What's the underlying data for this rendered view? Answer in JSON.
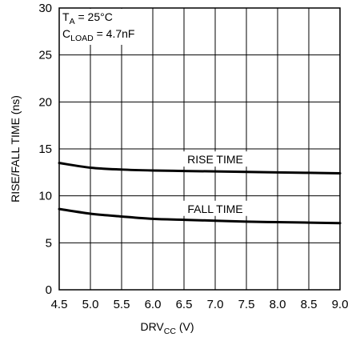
{
  "chart_data": {
    "type": "line",
    "xlabel": {
      "main": "DRV",
      "sub": "CC",
      "unit": " (V)"
    },
    "ylabel": "RISE/FALL TIME (ns)",
    "xlim": [
      4.5,
      9.0
    ],
    "ylim": [
      0,
      30
    ],
    "x_ticks": [
      "4.5",
      "5.0",
      "5.5",
      "6.0",
      "6.5",
      "7.0",
      "7.5",
      "8.0",
      "8.5",
      "9.0"
    ],
    "y_ticks": [
      "0",
      "5",
      "10",
      "15",
      "20",
      "25",
      "30"
    ],
    "grid": true,
    "annotations": {
      "line1": {
        "main": "T",
        "sub": "A",
        "rest": " = 25°C"
      },
      "line2": {
        "main": "C",
        "sub": "LOAD",
        "rest": " = 4.7nF"
      }
    },
    "series": [
      {
        "name": "RISE TIME",
        "x": [
          4.5,
          5.0,
          5.5,
          6.0,
          6.5,
          7.0,
          7.5,
          8.0,
          8.5,
          9.0
        ],
        "y": [
          13.5,
          13.0,
          12.8,
          12.7,
          12.65,
          12.6,
          12.55,
          12.5,
          12.45,
          12.4
        ]
      },
      {
        "name": "FALL TIME",
        "x": [
          4.5,
          5.0,
          5.5,
          6.0,
          6.5,
          7.0,
          7.5,
          8.0,
          8.5,
          9.0
        ],
        "y": [
          8.6,
          8.1,
          7.8,
          7.55,
          7.45,
          7.35,
          7.25,
          7.2,
          7.15,
          7.1
        ]
      }
    ]
  }
}
